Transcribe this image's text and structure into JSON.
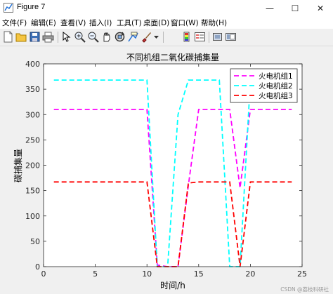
{
  "window": {
    "title": "Figure 7",
    "controls": {
      "minimize": "—",
      "maximize": "☐",
      "close": "✕"
    }
  },
  "menu": {
    "items": [
      "文件(F)",
      "编辑(E)",
      "查看(V)",
      "插入(I)",
      "工具(T)",
      "桌面(D)",
      "窗口(W)",
      "帮助(H)"
    ]
  },
  "toolbar": {
    "icons": [
      "new-icon",
      "open-icon",
      "save-icon",
      "print-icon",
      "pointer-icon",
      "zoom-in-icon",
      "zoom-out-icon",
      "pan-icon",
      "rotate-icon",
      "data-cursor-icon",
      "brush-icon",
      "brush-dropdown-icon",
      "colorbar-icon",
      "legend-icon",
      "hide-plot-tools-icon",
      "show-plot-tools-icon"
    ]
  },
  "watermark": "CSDN @荔枝科研社",
  "colors": {
    "series1": "#ff00ff",
    "series2": "#00ffff",
    "series3": "#ff0000",
    "figure_bg": "#f0f0f0",
    "axes_bg": "#ffffff"
  },
  "chart_data": {
    "type": "line",
    "title": "不同机组二氧化碳捕集量",
    "xlabel": "时间/h",
    "ylabel": "碳捕集量",
    "xlim": [
      0,
      25
    ],
    "ylim": [
      0,
      400
    ],
    "xticks": [
      0,
      5,
      10,
      15,
      20,
      25
    ],
    "yticks": [
      0,
      50,
      100,
      150,
      200,
      250,
      300,
      350,
      400
    ],
    "grid": false,
    "legend_position": "top-right",
    "line_style": "dashed",
    "x": [
      1,
      2,
      3,
      4,
      5,
      6,
      7,
      8,
      9,
      10,
      11,
      12,
      13,
      14,
      15,
      16,
      17,
      18,
      19,
      20,
      21,
      22,
      23,
      24
    ],
    "series": [
      {
        "name": "火电机组1",
        "color": "#ff00ff",
        "values": [
          310,
          310,
          310,
          310,
          310,
          310,
          310,
          310,
          310,
          310,
          3,
          0,
          0,
          160,
          310,
          310,
          310,
          310,
          155,
          310,
          310,
          310,
          310,
          310
        ]
      },
      {
        "name": "火电机组2",
        "color": "#00ffff",
        "values": [
          368,
          368,
          368,
          368,
          368,
          368,
          368,
          368,
          368,
          368,
          0,
          0,
          300,
          368,
          368,
          368,
          368,
          0,
          0,
          368,
          368,
          368,
          368,
          368
        ]
      },
      {
        "name": "火电机组3",
        "color": "#ff0000",
        "values": [
          167,
          167,
          167,
          167,
          167,
          167,
          167,
          167,
          167,
          167,
          0,
          0,
          0,
          165,
          167,
          167,
          167,
          167,
          0,
          167,
          167,
          167,
          167,
          167
        ]
      }
    ]
  }
}
